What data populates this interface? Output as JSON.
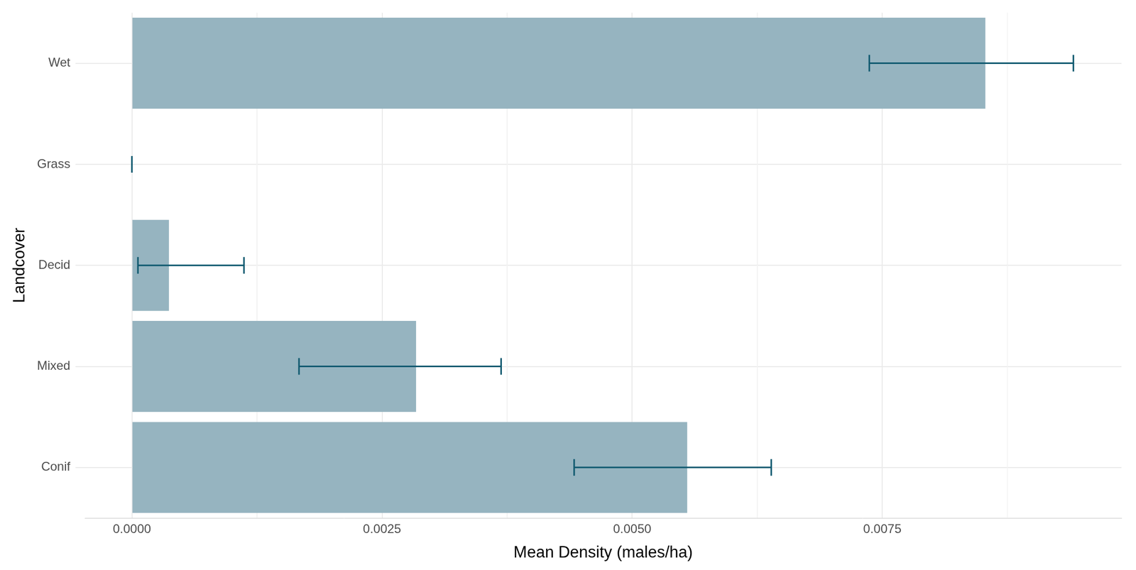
{
  "chart_data": {
    "type": "bar",
    "orientation": "horizontal",
    "x_label": "Mean Density (males/ha)",
    "y_label": "Landcover",
    "categories": [
      "Wet",
      "Grass",
      "Decid",
      "Mixed",
      "Conif"
    ],
    "values": [
      0.00853,
      0,
      0.00037,
      0.00284,
      0.00555
    ],
    "error_low": [
      0.00737,
      0,
      6e-05,
      0.00167,
      0.00442
    ],
    "error_high": [
      0.00941,
      0,
      0.00112,
      0.00369,
      0.00639
    ],
    "color": "#96b4c0",
    "error_color": "#115a70",
    "xlim": [
      -0.00047,
      0.00989
    ],
    "xticks": [
      {
        "value": 0,
        "label": "0.0000"
      },
      0.0025,
      {
        "value": 0.005,
        "label": "0.0050"
      },
      0.0075
    ],
    "grid": true
  }
}
